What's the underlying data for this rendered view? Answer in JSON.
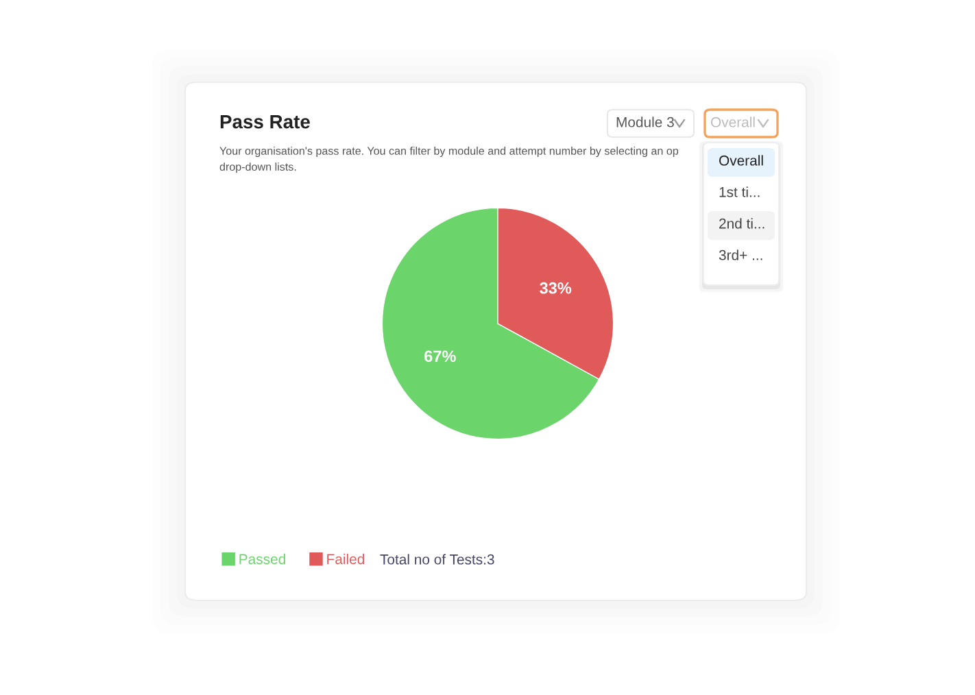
{
  "chart_data": {
    "type": "pie",
    "title": "Pass Rate",
    "subtitle": "Your organisation's pass rate. You can filter by module and attempt number by selecting an op\ndrop-down lists.",
    "categories": [
      "Passed",
      "Failed"
    ],
    "values": [
      67,
      33
    ],
    "colors": [
      "#6bd46b",
      "#e05a5a"
    ],
    "value_labels": [
      "67%",
      "33%"
    ],
    "legend": "bottom left",
    "annotations": [
      "Total no of Tests:3",
      "Module 3",
      "Overall",
      "Overall",
      "1st ti...",
      "2nd ti...",
      "3rd+ ..."
    ]
  }
}
